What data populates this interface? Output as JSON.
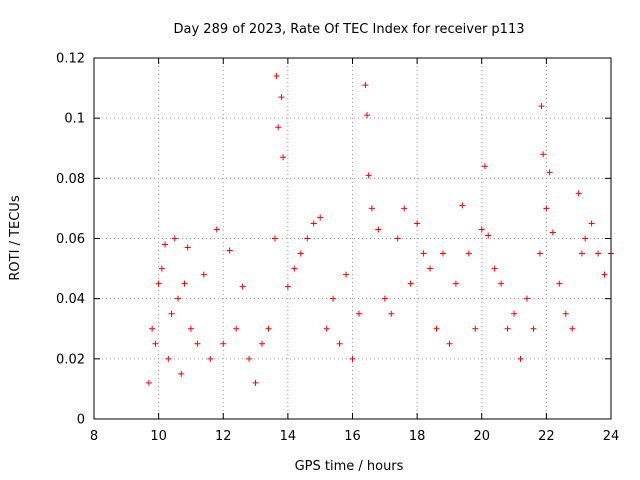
{
  "chart_data": {
    "type": "scatter",
    "title": "Day 289 of 2023, Rate Of TEC Index for receiver p113",
    "xlabel": "GPS time / hours",
    "ylabel": "ROTI / TECUs",
    "xlim": [
      8,
      24
    ],
    "ylim": [
      0,
      0.12
    ],
    "x_ticks": [
      "8",
      "10",
      "12",
      "14",
      "16",
      "18",
      "20",
      "22",
      "24"
    ],
    "y_ticks": [
      "0",
      "0.02",
      "0.04",
      "0.06",
      "0.08",
      "0.1",
      "0.12"
    ],
    "grid": true,
    "marker": "+",
    "color": "#ff0000",
    "series": [
      {
        "name": "ROTI",
        "x": [
          9.7,
          9.8,
          9.9,
          10.0,
          10.1,
          10.2,
          10.3,
          10.4,
          10.5,
          10.6,
          10.7,
          10.8,
          10.9,
          11.0,
          11.2,
          11.4,
          11.6,
          11.8,
          12.0,
          12.2,
          12.4,
          12.6,
          12.8,
          13.0,
          13.2,
          13.4,
          13.6,
          13.65,
          13.7,
          13.8,
          13.85,
          14.0,
          14.2,
          14.4,
          14.6,
          14.8,
          15.0,
          15.2,
          15.4,
          15.6,
          15.8,
          16.0,
          16.2,
          16.4,
          16.45,
          16.5,
          16.6,
          16.8,
          17.0,
          17.2,
          17.4,
          17.6,
          17.8,
          18.0,
          18.2,
          18.4,
          18.6,
          18.8,
          19.0,
          19.2,
          19.4,
          19.6,
          19.8,
          20.0,
          20.1,
          20.2,
          20.4,
          20.6,
          20.8,
          21.0,
          21.2,
          21.4,
          21.6,
          21.8,
          21.85,
          21.9,
          22.0,
          22.1,
          22.2,
          22.4,
          22.6,
          22.8,
          23.0,
          23.1,
          23.2,
          23.4,
          23.6,
          23.8,
          24.0
        ],
        "y": [
          0.012,
          0.03,
          0.025,
          0.045,
          0.05,
          0.058,
          0.02,
          0.035,
          0.06,
          0.04,
          0.015,
          0.045,
          0.057,
          0.03,
          0.025,
          0.048,
          0.02,
          0.063,
          0.025,
          0.056,
          0.03,
          0.044,
          0.02,
          0.012,
          0.025,
          0.03,
          0.06,
          0.114,
          0.097,
          0.107,
          0.087,
          0.044,
          0.05,
          0.055,
          0.06,
          0.065,
          0.067,
          0.03,
          0.04,
          0.025,
          0.048,
          0.02,
          0.035,
          0.111,
          0.101,
          0.081,
          0.07,
          0.063,
          0.04,
          0.035,
          0.06,
          0.07,
          0.045,
          0.065,
          0.055,
          0.05,
          0.03,
          0.055,
          0.025,
          0.045,
          0.071,
          0.055,
          0.03,
          0.063,
          0.084,
          0.061,
          0.05,
          0.045,
          0.03,
          0.035,
          0.02,
          0.04,
          0.03,
          0.055,
          0.104,
          0.088,
          0.07,
          0.082,
          0.062,
          0.045,
          0.035,
          0.03,
          0.075,
          0.055,
          0.06,
          0.065,
          0.055,
          0.048,
          0.055
        ]
      }
    ]
  }
}
